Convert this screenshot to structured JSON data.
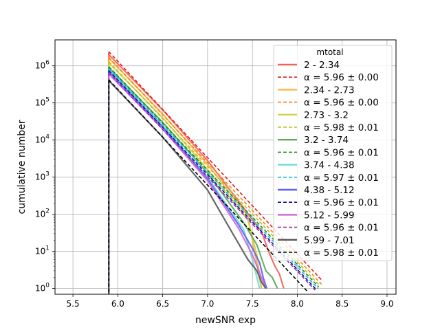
{
  "chart_data": {
    "type": "line",
    "xlabel": "newSNR exp",
    "ylabel": "cumulative number",
    "xlim": [
      5.3,
      9.1
    ],
    "ylim": [
      0.7,
      5000000
    ],
    "yscale": "log",
    "grid": true,
    "x_ticks": [
      5.5,
      6.0,
      6.5,
      7.0,
      7.5,
      8.0,
      8.5,
      9.0
    ],
    "x_tick_labels": [
      "5.5",
      "6.0",
      "6.5",
      "7.0",
      "7.5",
      "8.0",
      "8.5",
      "9.0"
    ],
    "y_ticks": [
      1,
      10,
      100,
      1000,
      10000,
      100000,
      1000000
    ],
    "y_tick_labels": [
      {
        "base": "10",
        "exp": "0"
      },
      {
        "base": "10",
        "exp": "1"
      },
      {
        "base": "10",
        "exp": "2"
      },
      {
        "base": "10",
        "exp": "3"
      },
      {
        "base": "10",
        "exp": "4"
      },
      {
        "base": "10",
        "exp": "5"
      },
      {
        "base": "10",
        "exp": "6"
      }
    ],
    "legend": {
      "title": "mtotal",
      "placement": "upper right"
    },
    "series": [
      {
        "name": "2 - 2.34",
        "color": "#f0645a",
        "style": "solid",
        "x": [
          5.9,
          6.5,
          7.0,
          7.4,
          7.6,
          7.68,
          7.75,
          7.8,
          7.85
        ],
        "y": [
          2000000,
          65000,
          2800,
          150,
          35,
          10,
          4,
          2.5,
          1
        ]
      },
      {
        "name": "α = 5.96 ± 0.00",
        "color": "#e41a1c",
        "style": "dashed",
        "fit": true,
        "x": [
          5.9,
          8.28
        ],
        "y": [
          2400000,
          1.6
        ]
      },
      {
        "name": "2.34 - 2.73",
        "color": "#ffb347",
        "style": "solid",
        "x": [
          5.9,
          6.5,
          7.0,
          7.45,
          7.6
        ],
        "y": [
          1600000,
          50000,
          2200,
          90,
          1
        ]
      },
      {
        "name": "α = 5.96 ± 0.00",
        "color": "#ff7f0e",
        "style": "dashed",
        "fit": true,
        "x": [
          5.9,
          8.27
        ],
        "y": [
          1700000,
          1.3
        ]
      },
      {
        "name": "2.73 - 3.2",
        "color": "#d4d04c",
        "style": "solid",
        "x": [
          5.9,
          6.5,
          7.0,
          7.45,
          7.55,
          7.6
        ],
        "y": [
          1200000,
          40000,
          1600,
          70,
          8,
          1
        ]
      },
      {
        "name": "α = 5.98 ± 0.01",
        "color": "#bcbd22",
        "style": "dashed",
        "fit": true,
        "x": [
          5.9,
          8.25
        ],
        "y": [
          1300000,
          1.2
        ]
      },
      {
        "name": "3.2 - 3.74",
        "color": "#5aaa55",
        "style": "solid",
        "x": [
          5.9,
          6.5,
          7.0,
          7.4,
          7.55,
          7.65,
          7.72,
          7.78
        ],
        "y": [
          900000,
          30000,
          1300,
          60,
          15,
          3,
          2,
          1
        ]
      },
      {
        "name": "α = 5.96 ± 0.01",
        "color": "#1b8a1b",
        "style": "dashed",
        "fit": true,
        "x": [
          5.9,
          8.24
        ],
        "y": [
          950000,
          1.1
        ]
      },
      {
        "name": "3.74 - 4.38",
        "color": "#6ddcd8",
        "style": "solid",
        "x": [
          5.9,
          6.5,
          7.0,
          7.4,
          7.5,
          7.58
        ],
        "y": [
          800000,
          25000,
          1000,
          40,
          6,
          1
        ]
      },
      {
        "name": "α = 5.97 ± 0.01",
        "color": "#17becf",
        "style": "dashed",
        "fit": true,
        "x": [
          5.9,
          8.23
        ],
        "y": [
          850000,
          1.0
        ]
      },
      {
        "name": "4.38 - 5.12",
        "color": "#5f5ff0",
        "style": "solid",
        "x": [
          5.9,
          6.5,
          7.0,
          7.35,
          7.5,
          7.58,
          7.62,
          7.66
        ],
        "y": [
          700000,
          22000,
          900,
          50,
          12,
          5,
          2,
          1
        ]
      },
      {
        "name": "α = 5.96 ± 0.01",
        "color": "#0a0ab4",
        "style": "dashed",
        "fit": true,
        "x": [
          5.9,
          8.21
        ],
        "y": [
          750000,
          0.95
        ]
      },
      {
        "name": "5.12 - 5.99",
        "color": "#cc66dd",
        "style": "solid",
        "x": [
          5.9,
          6.5,
          7.0,
          7.35,
          7.5,
          7.6,
          7.65
        ],
        "y": [
          600000,
          20000,
          800,
          40,
          8,
          2,
          1
        ]
      },
      {
        "name": "α = 5.96 ± 0.01",
        "color": "#a020b0",
        "style": "dashed",
        "fit": true,
        "x": [
          5.9,
          8.2
        ],
        "y": [
          650000,
          0.9
        ]
      },
      {
        "name": "5.99 - 7.01",
        "color": "#555555",
        "style": "solid",
        "x": [
          5.9,
          6.5,
          7.0,
          7.3,
          7.45,
          7.55,
          7.6,
          7.65
        ],
        "y": [
          400000,
          12000,
          450,
          25,
          6,
          3,
          1.5,
          1
        ]
      },
      {
        "name": "α = 5.98 ± 0.01",
        "color": "#000000",
        "style": "dashed",
        "fit": true,
        "x": [
          5.9,
          8.12
        ],
        "y": [
          420000,
          0.8
        ]
      }
    ]
  }
}
